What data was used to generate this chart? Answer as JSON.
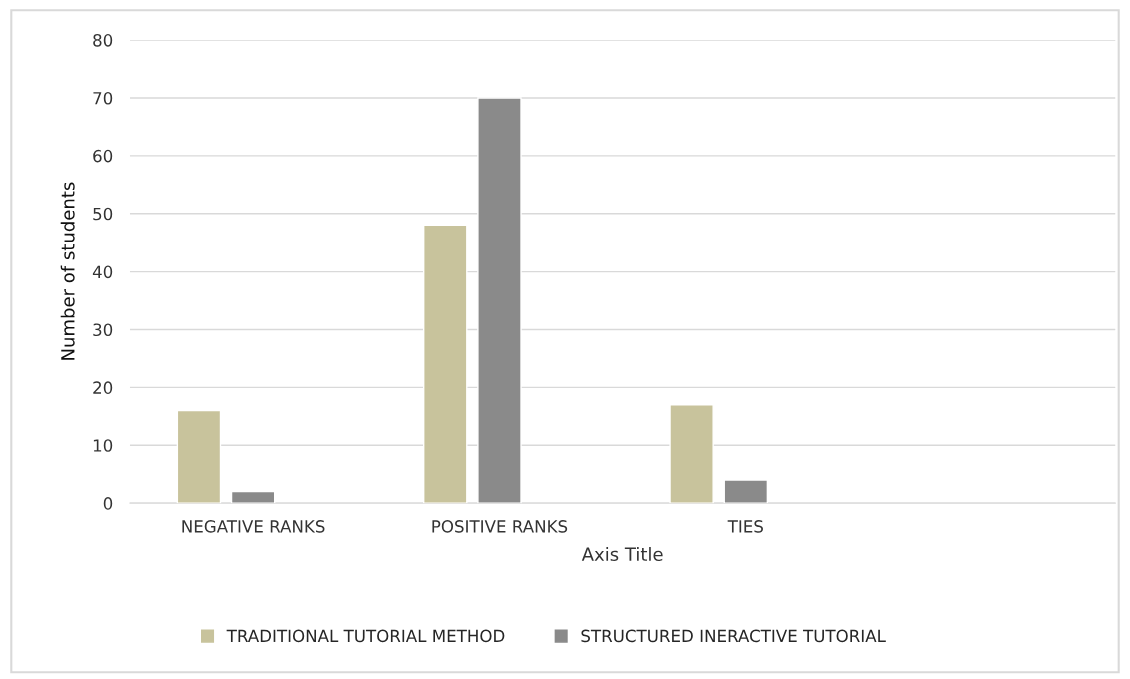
{
  "chart_data": {
    "type": "bar",
    "xlabel": "Axis Title",
    "ylabel": "Number of students",
    "categories": [
      "NEGATIVE RANKS",
      "POSITIVE RANKS",
      "TIES",
      null
    ],
    "series": [
      {
        "name": "TRADITIONAL TUTORIAL METHOD",
        "color": "#c8c39c",
        "values": [
          16,
          48,
          17,
          null
        ]
      },
      {
        "name": "STRUCTURED INERACTIVE TUTORIAL",
        "color": "#8a8a8a",
        "values": [
          2,
          70,
          4,
          null
        ]
      }
    ],
    "ylim": [
      0,
      80
    ],
    "yticks": [
      0,
      10,
      20,
      30,
      40,
      50,
      60,
      70,
      80
    ],
    "grid": "y",
    "legend": "bottom"
  }
}
